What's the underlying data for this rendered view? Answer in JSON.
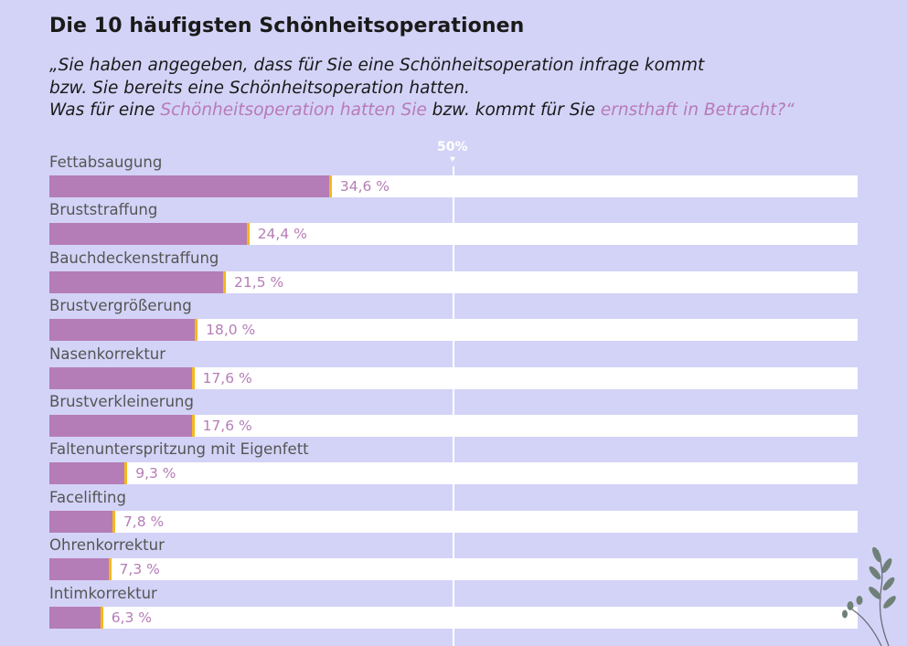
{
  "title": "Die 10 häufigsten Schönheitsoperationen",
  "question": {
    "line1": "„Sie haben angegeben, dass für Sie eine Schönheitsoperation infrage kommt",
    "line2": "bzw. Sie bereits eine Schönheitsoperation hatten.",
    "line3_a": "Was für eine ",
    "line3_hl1": "Schönheitsoperation hatten Sie",
    "line3_b": " bzw. kommt für Sie ",
    "line3_hl2": "ernsthaft in Betracht?“"
  },
  "colors": {
    "background": "#d3d3f7",
    "bar": "#b57db7",
    "bar_cap": "#f3b81e",
    "track": "#ffffff",
    "highlight": "#b77ab8"
  },
  "chart_data": {
    "type": "bar",
    "orientation": "horizontal",
    "categories": [
      "Fettabsaugung",
      "Bruststraffung",
      "Bauchdeckenstraffung",
      "Brustvergrößerung",
      "Nasenkorrektur",
      "Brustverkleinerung",
      "Faltenunterspritzung mit Eigenfett",
      "Facelifting",
      "Ohrenkorrektur",
      "Intimkorrektur"
    ],
    "values": [
      34.6,
      24.4,
      21.5,
      18.0,
      17.6,
      17.6,
      9.3,
      7.8,
      7.3,
      6.3
    ],
    "value_labels": [
      "34,6 %",
      "24,4 %",
      "21,5 %",
      "18,0 %",
      "17,6 %",
      "17,6 %",
      "9,3 %",
      "7,8 %",
      "7,3 %",
      "6,3 %"
    ],
    "xlim": [
      0,
      100
    ],
    "reference_line": {
      "value": 50,
      "label": "50%"
    },
    "icon": "leaf-branch-icon"
  }
}
